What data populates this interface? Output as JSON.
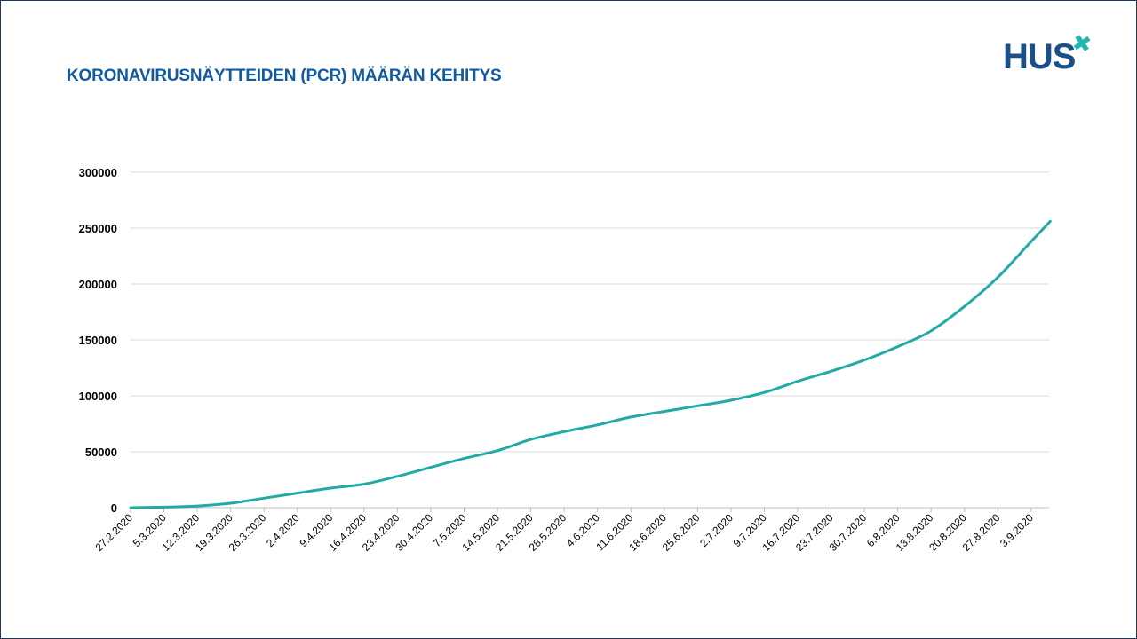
{
  "slide": {
    "title": "KORONAVIRUSNÄYTTEIDEN (PCR) MÄÄRÄN KEHITYS",
    "logo_text": "HUS",
    "logo_mark": "✖",
    "accent_color": "#22b5b0",
    "title_color": "#0f5aa0"
  },
  "chart_data": {
    "type": "line",
    "title": "",
    "xlabel": "",
    "ylabel": "",
    "ylim": [
      0,
      300000
    ],
    "y_ticks": [
      0,
      50000,
      100000,
      150000,
      200000,
      250000,
      300000
    ],
    "y_tick_labels": [
      "0",
      "50000",
      "100000",
      "150000",
      "200000",
      "250000",
      "300000"
    ],
    "x_tick_labels": [
      "27.2.2020",
      "5.3.2020",
      "12.3.2020",
      "19.3.2020",
      "26.3.2020",
      "2.4.2020",
      "9.4.2020",
      "16.4.2020",
      "23.4.2020",
      "30.4.2020",
      "7.5.2020",
      "14.5.2020",
      "21.5.2020",
      "28.5.2020",
      "4.6.2020",
      "11.6.2020",
      "18.6.2020",
      "25.6.2020",
      "2.7.2020",
      "9.7.2020",
      "16.7.2020",
      "23.7.2020",
      "30.7.2020",
      "6.8.2020",
      "13.8.2020",
      "20.8.2020",
      "27.8.2020",
      "3.9.2020"
    ],
    "grid": true,
    "legend": "none",
    "line_color": "#22aaa5",
    "series": [
      {
        "x": [
          "27.2.2020",
          "5.3.2020",
          "12.3.2020",
          "19.3.2020",
          "26.3.2020",
          "2.4.2020",
          "9.4.2020",
          "16.4.2020",
          "23.4.2020",
          "30.4.2020",
          "7.5.2020",
          "14.5.2020",
          "21.5.2020",
          "28.5.2020",
          "4.6.2020",
          "11.6.2020",
          "18.6.2020",
          "25.6.2020",
          "2.7.2020",
          "9.7.2020",
          "16.7.2020",
          "23.7.2020",
          "30.7.2020",
          "6.8.2020",
          "13.8.2020",
          "20.8.2020",
          "27.8.2020",
          "3.9.2020",
          "7.9.2020"
        ],
        "values": [
          0,
          500,
          1500,
          4000,
          8500,
          13000,
          17500,
          21000,
          28000,
          36000,
          44000,
          51000,
          61000,
          68000,
          74000,
          81000,
          86000,
          91000,
          96000,
          103000,
          113000,
          122000,
          132000,
          144000,
          158000,
          180000,
          206000,
          238000,
          256000
        ]
      }
    ]
  }
}
